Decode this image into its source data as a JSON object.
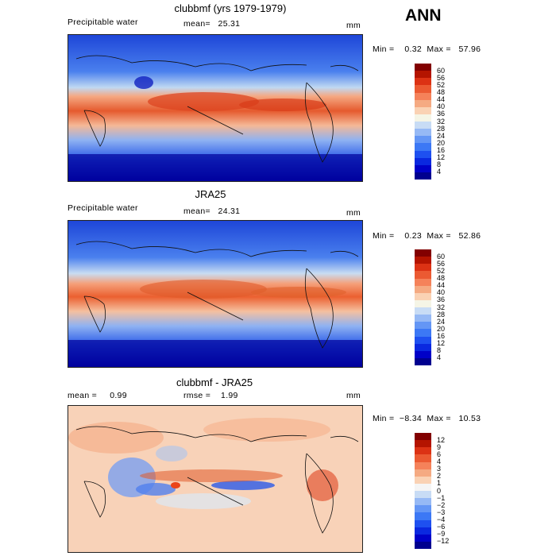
{
  "title_ann": "ANN",
  "units": "mm",
  "panels": [
    {
      "title": "clubbmf (yrs 1979-1979)",
      "field": "Precipitable water",
      "stat_left": "",
      "stat_mid": "mean=   25.31",
      "minmax": "Min =    0.32  Max =   57.96",
      "colors": [
        "#00008f",
        "#0000c8",
        "#0a28e0",
        "#1e50f0",
        "#3c78f5",
        "#6496f5",
        "#96b9f5",
        "#c8dcf5",
        "#f5f5e6",
        "#fad2b4",
        "#f5aa82",
        "#f5825a",
        "#eb5a32",
        "#dc3214",
        "#b41400",
        "#820000"
      ],
      "labels": [
        "4",
        "8",
        "12",
        "16",
        "20",
        "24",
        "28",
        "32",
        "36",
        "40",
        "44",
        "48",
        "52",
        "56",
        "60"
      ]
    },
    {
      "title": "JRA25",
      "field": "Precipitable water",
      "stat_left": "",
      "stat_mid": "mean=   24.31",
      "minmax": "Min =    0.23  Max =   52.86",
      "colors": [
        "#00008f",
        "#0000c8",
        "#0a28e0",
        "#1e50f0",
        "#3c78f5",
        "#6496f5",
        "#96b9f5",
        "#c8dcf5",
        "#f5f5e6",
        "#fad2b4",
        "#f5aa82",
        "#f5825a",
        "#eb5a32",
        "#dc3214",
        "#b41400",
        "#820000"
      ],
      "labels": [
        "4",
        "8",
        "12",
        "16",
        "20",
        "24",
        "28",
        "32",
        "36",
        "40",
        "44",
        "48",
        "52",
        "56",
        "60"
      ]
    },
    {
      "title": "clubbmf - JRA25",
      "field": "",
      "stat_left": "mean =     0.99",
      "stat_mid": "rmse =    1.99",
      "minmax": "Min =  −8.34  Max =   10.53",
      "colors": [
        "#00008f",
        "#0000c8",
        "#0a28e0",
        "#1e50f0",
        "#3c78f5",
        "#6496f5",
        "#96b9f5",
        "#c8dcf5",
        "#f5f5f5",
        "#fad2b4",
        "#f5aa82",
        "#f5825a",
        "#eb5a32",
        "#dc3214",
        "#b41400",
        "#820000"
      ],
      "labels": [
        "−12",
        "−9",
        "−6",
        "−4",
        "−3",
        "−2",
        "−1",
        "0",
        "1",
        "2",
        "3",
        "4",
        "6",
        "9",
        "12"
      ]
    }
  ]
}
